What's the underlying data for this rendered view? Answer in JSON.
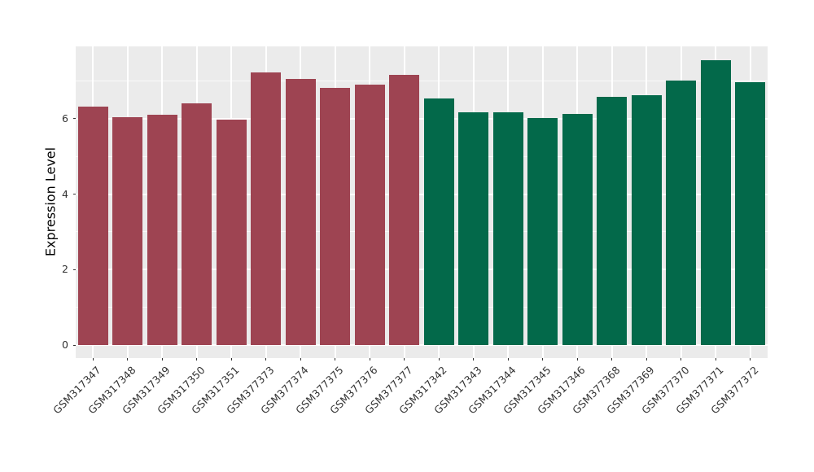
{
  "figure": {
    "background_color": "#FFFFFF",
    "panel_background_color": "#EBEBEB",
    "grid_color": "#FFFFFF",
    "axis_text_color": "#333333",
    "bar_color_left_group": "#9E4452",
    "bar_color_right_group": "#03694A"
  },
  "chart_data": {
    "type": "bar",
    "title": "",
    "xlabel": "",
    "ylabel": "Expression Level",
    "legend": "none",
    "grid": true,
    "ylim": [
      -0.35,
      7.92
    ],
    "yticks": [
      0,
      2,
      4,
      6
    ],
    "minor_yticks": [
      1,
      3,
      5,
      7
    ],
    "categories": [
      "GSM317347",
      "GSM317348",
      "GSM317349",
      "GSM317350",
      "GSM317351",
      "GSM377373",
      "GSM377374",
      "GSM377375",
      "GSM377376",
      "GSM377377",
      "GSM317342",
      "GSM317343",
      "GSM317344",
      "GSM317345",
      "GSM317346",
      "GSM377368",
      "GSM377369",
      "GSM377370",
      "GSM377371",
      "GSM377372"
    ],
    "values": [
      6.32,
      6.05,
      6.1,
      6.4,
      5.98,
      7.22,
      7.05,
      6.82,
      6.9,
      7.17,
      6.54,
      6.17,
      6.17,
      6.02,
      6.13,
      6.58,
      6.62,
      7.02,
      7.56,
      6.97
    ],
    "bar_colors": [
      "#9E4452",
      "#9E4452",
      "#9E4452",
      "#9E4452",
      "#9E4452",
      "#9E4452",
      "#9E4452",
      "#9E4452",
      "#9E4452",
      "#9E4452",
      "#03694A",
      "#03694A",
      "#03694A",
      "#03694A",
      "#03694A",
      "#03694A",
      "#03694A",
      "#03694A",
      "#03694A",
      "#03694A"
    ]
  }
}
